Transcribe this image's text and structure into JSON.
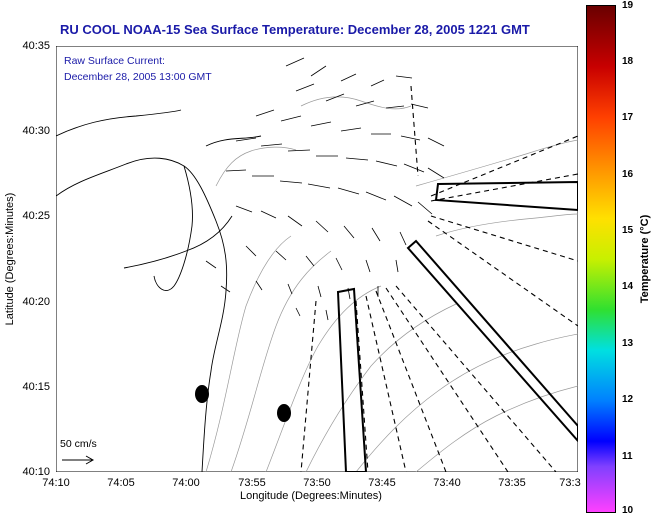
{
  "title": "RU COOL  NOAA-15  Sea Surface Temperature:  December 28, 2005 1221 GMT",
  "legend": {
    "line1": "Raw Surface Current:",
    "line2": "December 28, 2005 13:00 GMT"
  },
  "axes": {
    "xlabel": "Longitude (Degrees:Minutes)",
    "ylabel": "Latitude (Degrees:Minutes)",
    "xticks": [
      "74:10",
      "74:05",
      "74:00",
      "73:55",
      "73:50",
      "73:45",
      "73:40",
      "73:35",
      "73:3"
    ],
    "yticks": [
      "40:35",
      "40:30",
      "40:25",
      "40:20",
      "40:15",
      "40:10"
    ]
  },
  "colorbar": {
    "label": "Temperature (°C)",
    "ticks": [
      "19",
      "18",
      "17",
      "16",
      "15",
      "14",
      "13",
      "12",
      "11",
      "10"
    ]
  },
  "scale": {
    "label": "50 cm/s"
  }
}
